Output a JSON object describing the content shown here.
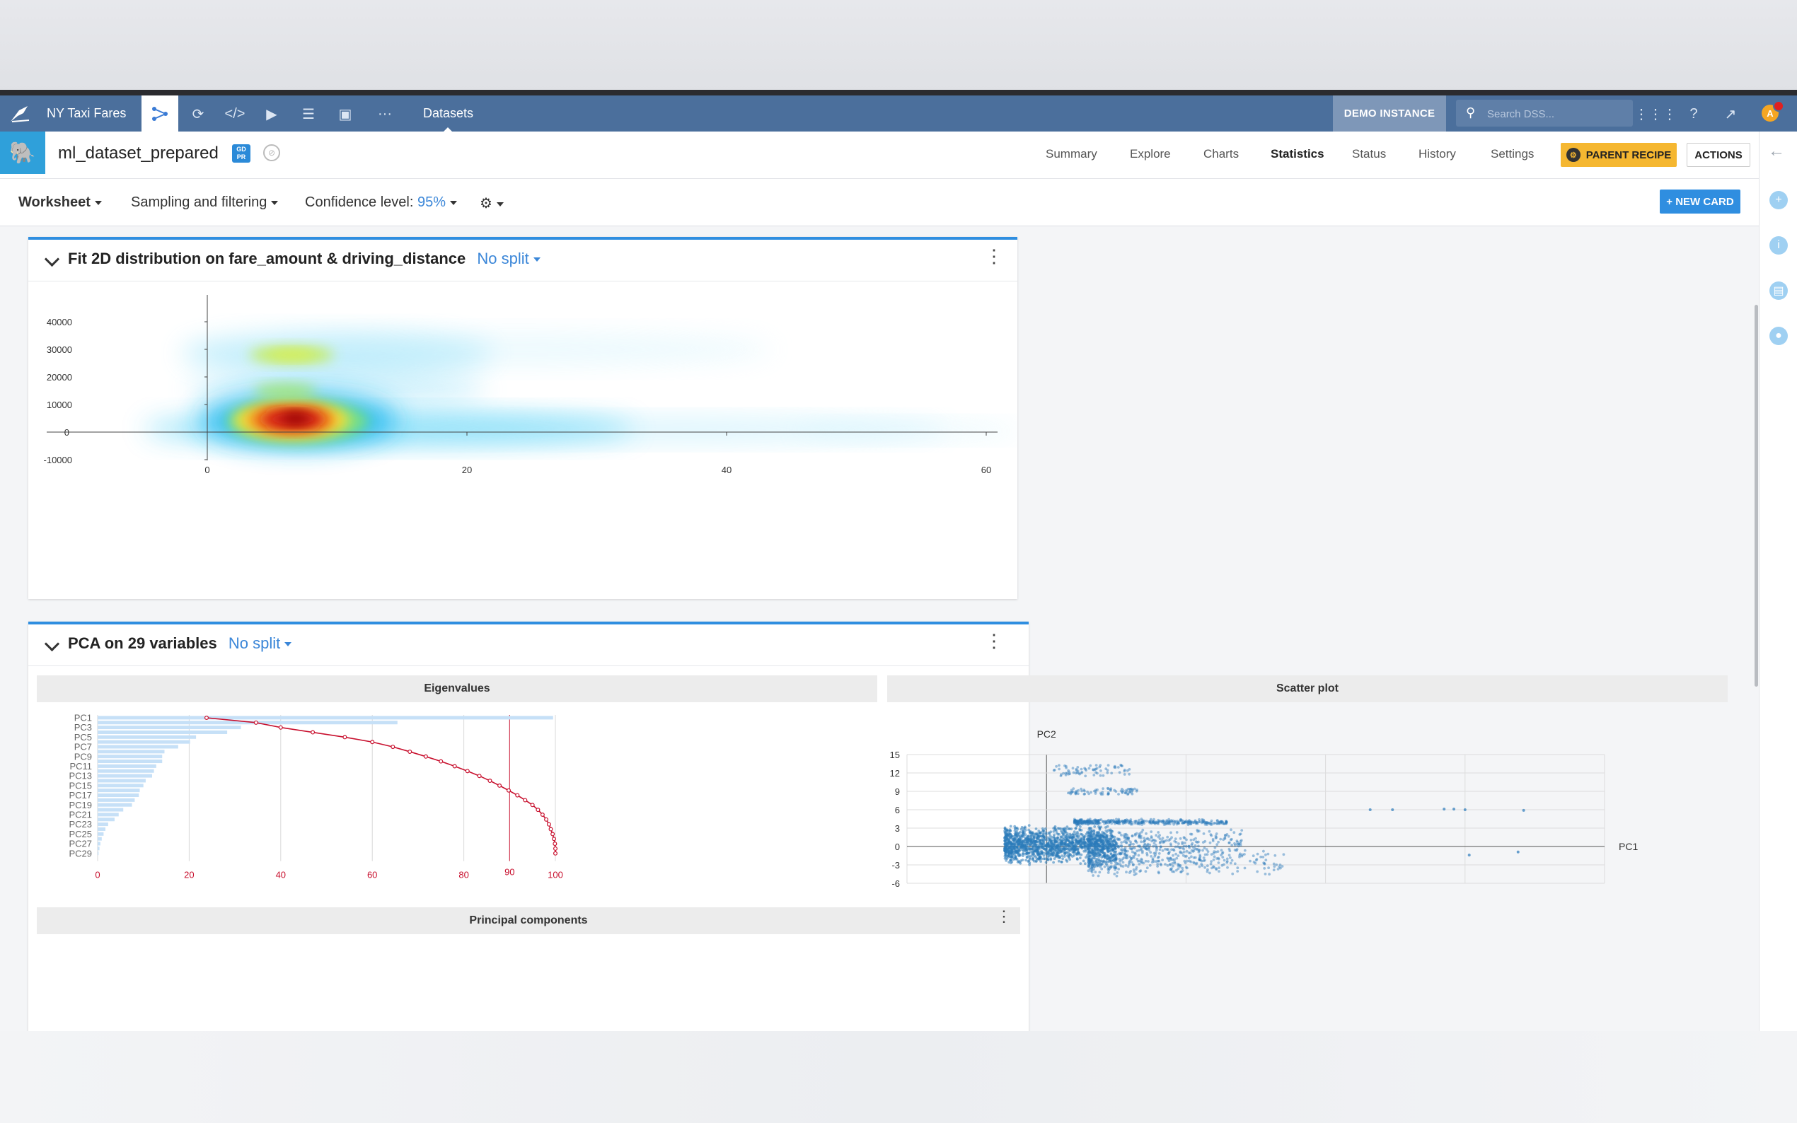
{
  "nav": {
    "project": "NY Taxi Fares",
    "section": "Datasets",
    "instance": "DEMO INSTANCE",
    "search_placeholder": "Search DSS...",
    "avatar": "A"
  },
  "dataset": {
    "name": "ml_dataset_prepared",
    "gdpr_badge": "GD PR",
    "tabs": [
      "Summary",
      "Explore",
      "Charts",
      "Statistics",
      "Status",
      "History",
      "Settings"
    ],
    "active_tab": "Statistics",
    "parent_recipe": "PARENT RECIPE",
    "actions": "ACTIONS"
  },
  "worksheet": {
    "worksheet_label": "Worksheet",
    "sampling_label": "Sampling and filtering",
    "confidence_label": "Confidence level:",
    "confidence_value": "95%",
    "new_card": "+ NEW CARD"
  },
  "colors": {
    "nav_bg": "#4b6f9c",
    "accent": "#2f8ee0",
    "parent_recipe": "#f5b731",
    "curve": "#c8102e",
    "bars": "#c6e0f7",
    "scatter": "#2b7bba"
  },
  "card1": {
    "title": "Fit 2D distribution on fare_amount & driving_distance",
    "split": "No split"
  },
  "card2": {
    "title": "PCA on 29 variables",
    "split": "No split",
    "eigen_header": "Eigenvalues",
    "scatter_header": "Scatter plot",
    "components_header": "Principal components"
  },
  "chart_data": [
    {
      "type": "heatmap",
      "title": "Fit 2D distribution on fare_amount & driving_distance",
      "x_ticks": [
        "0",
        "20",
        "40",
        "60"
      ],
      "y_ticks": [
        "40000",
        "30000",
        "20000",
        "10000",
        "0",
        "-10000"
      ],
      "xlim": [
        -11,
        66
      ],
      "ylim": [
        -10000,
        45000
      ],
      "density_peaks": [
        {
          "x": 7,
          "y": 5000,
          "level": "max"
        },
        {
          "x": 6,
          "y": 15000,
          "level": "medium"
        },
        {
          "x": 6,
          "y": 28000,
          "level": "medium"
        }
      ]
    },
    {
      "type": "bar",
      "title": "Eigenvalues",
      "categories": [
        "PC1",
        "PC2",
        "PC3",
        "PC4",
        "PC5",
        "PC6",
        "PC7",
        "PC8",
        "PC9",
        "PC10",
        "PC11",
        "PC12",
        "PC13",
        "PC14",
        "PC15",
        "PC16",
        "PC17",
        "PC18",
        "PC19",
        "PC20",
        "PC21",
        "PC22",
        "PC23",
        "PC24",
        "PC25",
        "PC26",
        "PC27",
        "PC28",
        "PC29"
      ],
      "tick_labels": [
        "PC1",
        "PC3",
        "PC5",
        "PC7",
        "PC9",
        "PC11",
        "PC13",
        "PC15",
        "PC17",
        "PC19",
        "PC21",
        "PC23",
        "PC25",
        "PC27",
        "PC29"
      ],
      "series": [
        {
          "values": [
            99.5,
            65.5,
            31.3,
            28.3,
            21.5,
            20.2,
            17.6,
            14.6,
            14.1,
            14.1,
            12.8,
            12.3,
            11.9,
            10.5,
            10.0,
            9.2,
            9.0,
            8.1,
            7.5,
            5.6,
            4.6,
            3.7,
            2.3,
            1.7,
            1.3,
            0.9,
            0.6,
            0.4,
            0.2
          ]
        },
        {
          "values": [
            23.8,
            34.6,
            40.0,
            47.0,
            54.0,
            60.0,
            64.5,
            68.2,
            71.7,
            75.0,
            78.0,
            80.8,
            83.4,
            85.7,
            87.8,
            89.8,
            91.7,
            93.4,
            95.0,
            96.2,
            97.2,
            98.0,
            98.6,
            99.0,
            99.4,
            99.7,
            99.9,
            100.0,
            100.0
          ]
        }
      ],
      "x_ticks": [
        0,
        20,
        40,
        60,
        80,
        90,
        100
      ],
      "xlim": [
        0,
        100
      ],
      "reference_line": 90
    },
    {
      "type": "scatter",
      "title": "Scatter plot",
      "xlabel": "PC1",
      "ylabel": "PC2",
      "xlim": [
        -10,
        40
      ],
      "ylim": [
        -6,
        15
      ],
      "x_ticks": [
        -10,
        0,
        10,
        20,
        30,
        40
      ],
      "y_ticks": [
        15,
        12,
        9,
        6,
        3,
        0,
        -3,
        -6
      ],
      "clusters": [
        {
          "x_range": [
            -3,
            5
          ],
          "y_range": [
            -3,
            3.5
          ],
          "density": "dense"
        },
        {
          "x_range": [
            3,
            14
          ],
          "y_range": [
            -2,
            3
          ],
          "density": "medium"
        },
        {
          "x_range": [
            3,
            17
          ],
          "y_range": [
            -5,
            0
          ],
          "density": "medium"
        },
        {
          "x_range": [
            2,
            13
          ],
          "y_range": [
            3.5,
            4.5
          ],
          "density": "medium"
        },
        {
          "x_range": [
            0.5,
            6
          ],
          "y_range": [
            11.5,
            13.3
          ],
          "density": "sparse"
        },
        {
          "x_range": [
            1.5,
            6.5
          ],
          "y_range": [
            8.5,
            9.5
          ],
          "density": "sparse"
        }
      ],
      "outliers": [
        [
          23.2,
          6.0
        ],
        [
          24.8,
          6.0
        ],
        [
          28.5,
          6.1
        ],
        [
          29.2,
          6.1
        ],
        [
          30.0,
          6.0
        ],
        [
          34.2,
          5.9
        ],
        [
          30.3,
          -1.4
        ],
        [
          33.8,
          -0.9
        ]
      ]
    }
  ]
}
